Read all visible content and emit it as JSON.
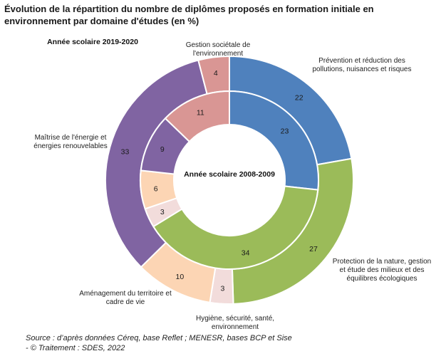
{
  "title": "Évolution de la répartition du nombre de diplômes proposés en formation initiale en environnement par domaine d'études (en %)",
  "source_line1": "Source : d’après données Céreq, base Reflet ; MENESR, bases BCP et Sise",
  "source_line2": "- © Traitement : SDES, 2022",
  "chart_data": {
    "type": "donut",
    "outer_label": "Année scolaire 2019-2020",
    "inner_label": "Année scolaire 2008-2009",
    "categories": [
      "Prévention et réduction des pollutions, nuisances et risques",
      "Protection de la nature, gestion et étude des milieux et des équilibres écologiques",
      "Hygiène, sécurité, santé, environnement",
      "Aménagement du territoire et cadre de vie",
      "Maîtrise de l'énergie et énergies renouvelables",
      "Gestion sociétale de l'environnement"
    ],
    "category_labels": [
      [
        "Prévention et réduction des",
        "pollutions, nuisances et risques"
      ],
      [
        "Protection de la nature, gestion",
        "et étude des milieux et des",
        "équilibres écologiques"
      ],
      [
        "Hygiène, sécurité, santé,",
        "environnement"
      ],
      [
        "Aménagement du territoire et",
        "cadre de vie"
      ],
      [
        "Maîtrise de l'énergie et",
        "énergies renouvelables"
      ],
      [
        "Gestion sociétale de",
        "l'environnement"
      ]
    ],
    "series": [
      {
        "name": "Année scolaire 2019-2020",
        "values": [
          22,
          27,
          3,
          10,
          33,
          4
        ]
      },
      {
        "name": "Année scolaire 2008-2009",
        "values": [
          23,
          34,
          3,
          6,
          9,
          11
        ]
      }
    ],
    "colors": {
      "outer": [
        "#4f81bd",
        "#9bbb59",
        "#f2dcdb",
        "#fcd5b4",
        "#8064a2",
        "#d99694"
      ],
      "inner": [
        "#4f81bd",
        "#9bbb59",
        "#f2dcdb",
        "#fcd5b4",
        "#8064a2",
        "#d99694"
      ]
    }
  }
}
